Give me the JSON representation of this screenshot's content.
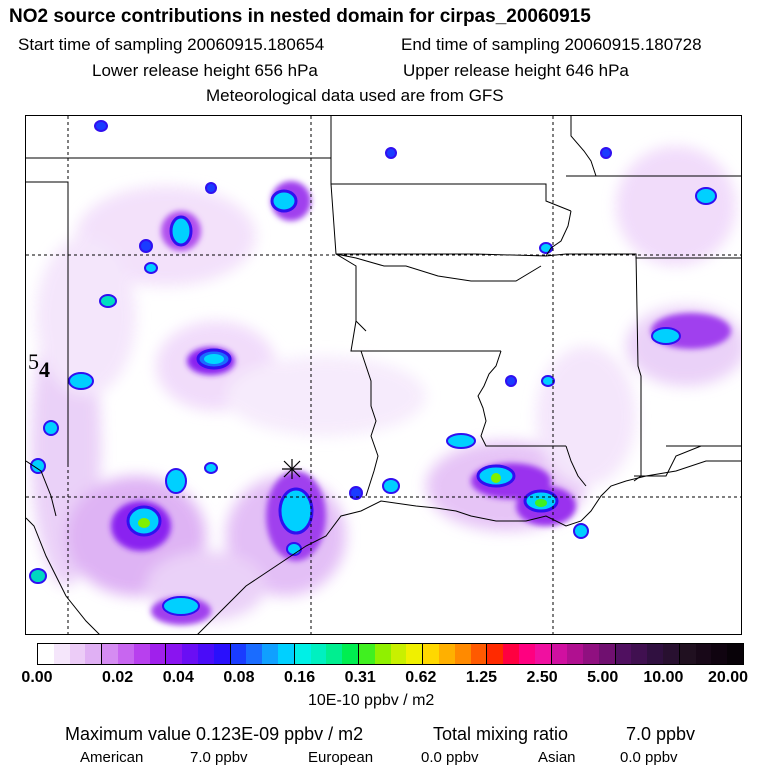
{
  "header": {
    "title": "NO2 source contributions in nested domain for cirpas_20060915",
    "start_label": "Start time of sampling 20060915.180654",
    "end_label": "End time of sampling 20060915.180728",
    "lower_label": "Lower release height  656 hPa",
    "upper_label": "Upper release height  646 hPa",
    "met_label": "Meteorological data used are from GFS"
  },
  "map": {
    "overlay_text": "5",
    "overlay_sub": "4"
  },
  "colorbar": {
    "ticks": [
      "0.00",
      "0.02",
      "0.04",
      "0.08",
      "0.16",
      "0.31",
      "0.62",
      "1.25",
      "2.50",
      "5.00",
      "10.00",
      "20.00"
    ],
    "colors": [
      "#ffffff",
      "#f5e6fb",
      "#ecccf7",
      "#e0b0f4",
      "#d58cf2",
      "#c866f0",
      "#b840ee",
      "#a020ec",
      "#8a14f0",
      "#6a0ef4",
      "#4a0cf8",
      "#2a10fc",
      "#1a3cff",
      "#1a6cff",
      "#10a0ff",
      "#00d0ff",
      "#00f0e6",
      "#00f0c0",
      "#00ee90",
      "#00ee50",
      "#40f020",
      "#90f000",
      "#c8f000",
      "#f0f000",
      "#ffd800",
      "#ffb000",
      "#ff8a00",
      "#ff5a00",
      "#ff2a00",
      "#ff0040",
      "#ff0080",
      "#f010a0",
      "#d010a0",
      "#b01090",
      "#901080",
      "#701070",
      "#501060",
      "#401050",
      "#301040",
      "#281030",
      "#201020",
      "#180818",
      "#100410",
      "#080208"
    ],
    "units": "10E-10 ppbv / m2"
  },
  "summary": {
    "max_label": "Maximum value  0.123E-09 ppbv / m2",
    "total_label": "Total mixing ratio",
    "total_value": "7.0 ppbv",
    "american_label": "American",
    "american_value": "7.0 ppbv",
    "european_label": "European",
    "european_value": "0.0 ppbv",
    "asian_label": "Asian",
    "asian_value": "0.0 ppbv"
  }
}
